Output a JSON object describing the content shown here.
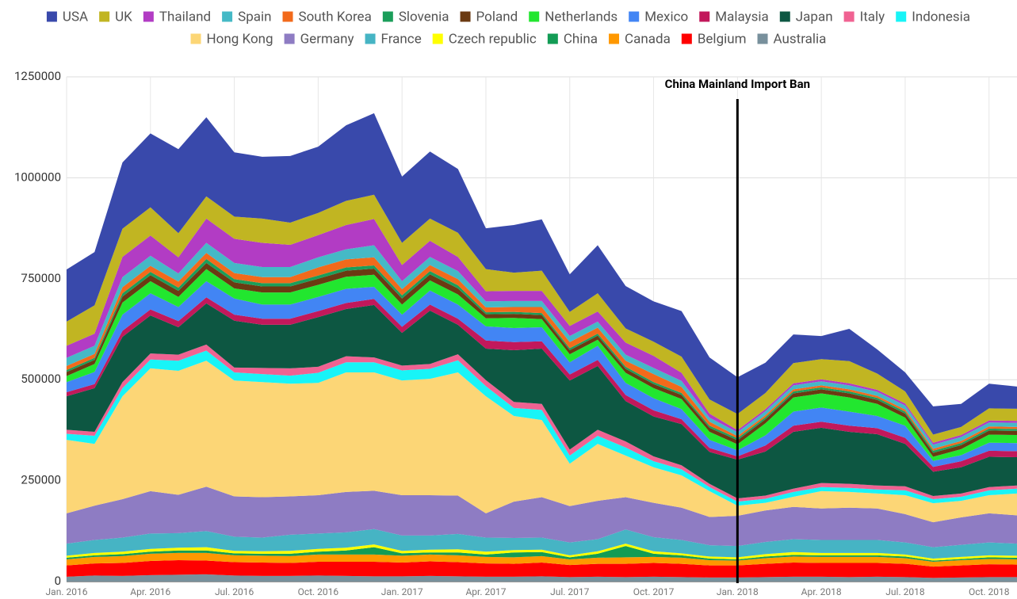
{
  "chart_data": {
    "type": "stacked_area",
    "categories": [
      "Jan. 2016",
      null,
      null,
      "Apr. 2016",
      null,
      null,
      "Jul. 2016",
      null,
      null,
      "Oct. 2016",
      null,
      null,
      "Jan. 2017",
      null,
      null,
      "Apr. 2017",
      null,
      null,
      "Jul. 2017",
      null,
      null,
      "Oct. 2017",
      null,
      null,
      "Jan. 2018",
      null,
      null,
      "Apr. 2018",
      null,
      null,
      "Jul. 2018",
      null,
      null,
      "Oct. 2018",
      null
    ],
    "ylim": [
      0,
      1250000
    ],
    "yticks": [
      0,
      250000,
      500000,
      750000,
      1000000,
      1250000
    ],
    "grid": true,
    "legend": "top",
    "annotations": [
      {
        "text": "China Mainland Import Ban",
        "x": "Jan. 2018"
      }
    ],
    "series": [
      {
        "name": "USA",
        "color": "#3949ab",
        "values": [
          129000,
          132000,
          164000,
          183000,
          208000,
          196000,
          159000,
          153000,
          165000,
          164000,
          187000,
          202000,
          164000,
          166000,
          158000,
          101000,
          118000,
          127000,
          93000,
          119000,
          105000,
          100000,
          113000,
          104000,
          91000,
          75000,
          71000,
          57000,
          80000,
          60000,
          47000,
          70000,
          57000,
          61000,
          55000
        ]
      },
      {
        "name": "UK",
        "color": "#c1b522",
        "values": [
          60000,
          70000,
          70000,
          70000,
          60000,
          55000,
          55000,
          60000,
          55000,
          55000,
          60000,
          60000,
          55000,
          55000,
          60000,
          55000,
          45000,
          50000,
          35000,
          45000,
          35000,
          35000,
          40000,
          35000,
          40000,
          40000,
          50000,
          50000,
          55000,
          40000,
          30000,
          20000,
          20000,
          30000,
          30000
        ]
      },
      {
        "name": "Thailand",
        "color": "#b23cc4",
        "values": [
          30000,
          30000,
          50000,
          50000,
          40000,
          60000,
          60000,
          60000,
          55000,
          55000,
          60000,
          65000,
          40000,
          40000,
          35000,
          25000,
          25000,
          25000,
          25000,
          25000,
          30000,
          30000,
          20000,
          10000,
          5000,
          5000,
          5000,
          5000,
          5000,
          5000,
          5000,
          5000,
          5000,
          5000,
          5000
        ]
      },
      {
        "name": "Spain",
        "color": "#45b9c6",
        "values": [
          20000,
          20000,
          25000,
          25000,
          20000,
          25000,
          25000,
          25000,
          25000,
          25000,
          25000,
          30000,
          20000,
          20000,
          20000,
          15000,
          15000,
          15000,
          15000,
          15000,
          15000,
          15000,
          15000,
          10000,
          10000,
          10000,
          10000,
          10000,
          10000,
          10000,
          10000,
          10000,
          10000,
          10000,
          10000
        ]
      },
      {
        "name": "South Korea",
        "color": "#f26a1b",
        "values": [
          10000,
          10000,
          15000,
          15000,
          15000,
          15000,
          15000,
          15000,
          15000,
          20000,
          20000,
          20000,
          15000,
          15000,
          15000,
          12000,
          12000,
          15000,
          15000,
          15000,
          15000,
          20000,
          15000,
          10000,
          5000,
          5000,
          5000,
          5000,
          5000,
          5000,
          5000,
          5000,
          5000,
          5000,
          5000
        ]
      },
      {
        "name": "Slovenia",
        "color": "#1b9e5a",
        "values": [
          5000,
          5000,
          8000,
          8000,
          8000,
          10000,
          8000,
          8000,
          8000,
          8000,
          8000,
          8000,
          8000,
          8000,
          8000,
          5000,
          5000,
          5000,
          5000,
          5000,
          5000,
          5000,
          5000,
          5000,
          5000,
          5000,
          5000,
          5000,
          5000,
          5000,
          5000,
          5000,
          5000,
          5000,
          5000
        ]
      },
      {
        "name": "Poland",
        "color": "#6b3a12",
        "values": [
          10000,
          10000,
          15000,
          15000,
          15000,
          15000,
          15000,
          15000,
          15000,
          15000,
          15000,
          15000,
          15000,
          15000,
          15000,
          10000,
          10000,
          10000,
          10000,
          10000,
          10000,
          10000,
          10000,
          10000,
          10000,
          10000,
          10000,
          10000,
          10000,
          10000,
          10000,
          10000,
          10000,
          10000,
          10000
        ]
      },
      {
        "name": "Netherlands",
        "color": "#22e62f",
        "values": [
          15000,
          20000,
          30000,
          30000,
          25000,
          30000,
          25000,
          30000,
          30000,
          30000,
          30000,
          30000,
          25000,
          25000,
          25000,
          20000,
          25000,
          20000,
          20000,
          15000,
          25000,
          25000,
          25000,
          20000,
          15000,
          30000,
          35000,
          35000,
          35000,
          30000,
          20000,
          10000,
          15000,
          20000,
          20000
        ]
      },
      {
        "name": "Mexico",
        "color": "#4285f4",
        "values": [
          25000,
          30000,
          40000,
          40000,
          35000,
          40000,
          40000,
          35000,
          35000,
          35000,
          35000,
          30000,
          30000,
          35000,
          35000,
          35000,
          35000,
          35000,
          30000,
          35000,
          30000,
          30000,
          25000,
          20000,
          15000,
          25000,
          35000,
          35000,
          35000,
          30000,
          30000,
          15000,
          15000,
          20000,
          20000
        ]
      },
      {
        "name": "Malaysia",
        "color": "#c2185b",
        "values": [
          10000,
          10000,
          15000,
          15000,
          15000,
          15000,
          15000,
          15000,
          15000,
          15000,
          15000,
          15000,
          15000,
          15000,
          15000,
          20000,
          20000,
          18000,
          15000,
          15000,
          15000,
          15000,
          12000,
          10000,
          8000,
          15000,
          15000,
          15000,
          15000,
          15000,
          15000,
          12000,
          15000,
          15000,
          15000
        ]
      },
      {
        "name": "Japan",
        "color": "#0d5742",
        "values": [
          83000,
          108000,
          112000,
          94000,
          68000,
          102000,
          116000,
          107000,
          108000,
          123000,
          117000,
          130000,
          81000,
          132000,
          73000,
          78000,
          128000,
          137000,
          171000,
          158000,
          100000,
          99000,
          102000,
          79000,
          96000,
          109000,
          141000,
          137000,
          129000,
          127000,
          105000,
          60000,
          65000,
          75000,
          70000
        ]
      },
      {
        "name": "Italy",
        "color": "#f06292",
        "values": [
          10000,
          10000,
          15000,
          15000,
          15000,
          15000,
          12000,
          15000,
          18000,
          15000,
          15000,
          12000,
          12000,
          12000,
          15000,
          15000,
          15000,
          15000,
          15000,
          15000,
          15000,
          12000,
          10000,
          8000,
          8000,
          8000,
          8000,
          10000,
          10000,
          10000,
          10000,
          8000,
          8000,
          8000,
          8000
        ]
      },
      {
        "name": "Indonesia",
        "color": "#18f4f7",
        "values": [
          15000,
          20000,
          20000,
          22000,
          25000,
          25000,
          20000,
          20000,
          20000,
          25000,
          25000,
          25000,
          25000,
          25000,
          30000,
          25000,
          20000,
          25000,
          20000,
          20000,
          20000,
          15000,
          15000,
          10000,
          10000,
          10000,
          12000,
          10000,
          10000,
          10000,
          12000,
          10000,
          10000,
          12000,
          12000
        ]
      },
      {
        "name": "Hong Kong",
        "color": "#fcd676",
        "values": [
          182000,
          153000,
          255000,
          304000,
          307000,
          312000,
          287000,
          285000,
          279000,
          278000,
          296000,
          293000,
          284000,
          288000,
          305000,
          290000,
          212000,
          191000,
          105000,
          141000,
          103000,
          88000,
          80000,
          64000,
          25000,
          19000,
          25000,
          43000,
          39000,
          37000,
          47000,
          47000,
          41000,
          45000,
          54000
        ]
      },
      {
        "name": "Germany",
        "color": "#8e7cc3",
        "values": [
          75000,
          85000,
          95000,
          105000,
          95000,
          110000,
          100000,
          100000,
          95000,
          95000,
          100000,
          95000,
          100000,
          100000,
          95000,
          60000,
          90000,
          100000,
          90000,
          95000,
          80000,
          85000,
          80000,
          70000,
          75000,
          78000,
          80000,
          78000,
          80000,
          78000,
          70000,
          62000,
          68000,
          72000,
          70000
        ]
      },
      {
        "name": "France",
        "color": "#46b4c4",
        "values": [
          30000,
          32000,
          35000,
          38000,
          36000,
          40000,
          35000,
          34000,
          40000,
          38000,
          38000,
          38000,
          38000,
          35000,
          38000,
          35000,
          30000,
          30000,
          32000,
          30000,
          35000,
          35000,
          33000,
          28000,
          28000,
          30000,
          32000,
          32000,
          32000,
          32000,
          30000,
          28000,
          30000,
          32000,
          30000
        ]
      },
      {
        "name": "Czech republic",
        "color": "#ffff00",
        "values": [
          5000,
          6000,
          6000,
          7000,
          7000,
          8000,
          6000,
          6000,
          7000,
          7000,
          7000,
          7000,
          6000,
          7000,
          8000,
          7000,
          6000,
          6000,
          5000,
          6000,
          6000,
          6000,
          5000,
          5000,
          5000,
          6000,
          7000,
          6000,
          6000,
          6000,
          5000,
          5000,
          5000,
          5000,
          5000
        ]
      },
      {
        "name": "China",
        "color": "#139c55",
        "values": [
          4000,
          4000,
          5000,
          5000,
          6000,
          6000,
          5000,
          5000,
          6000,
          7000,
          10000,
          18000,
          6000,
          5000,
          7000,
          6000,
          12000,
          10000,
          5000,
          10000,
          28000,
          8000,
          6000,
          4000,
          3000,
          4000,
          4000,
          4000,
          4000,
          4000,
          4000,
          3000,
          3000,
          4000,
          4000
        ]
      },
      {
        "name": "Canada",
        "color": "#ff9800",
        "values": [
          15000,
          16000,
          17000,
          18000,
          18000,
          19000,
          17000,
          17000,
          17000,
          18000,
          18000,
          18000,
          17000,
          17000,
          17000,
          16000,
          16000,
          16000,
          14000,
          15000,
          16000,
          15000,
          15000,
          13000,
          12000,
          14000,
          15000,
          15000,
          15000,
          15000,
          14000,
          12000,
          13000,
          13000,
          13000
        ]
      },
      {
        "name": "Belgium",
        "color": "#ff0000",
        "values": [
          28000,
          30000,
          32000,
          35000,
          36000,
          34000,
          33000,
          33000,
          32000,
          34000,
          35000,
          36000,
          34000,
          36000,
          35000,
          33000,
          32000,
          34000,
          30000,
          32000,
          33000,
          34000,
          33000,
          30000,
          30000,
          33000,
          35000,
          34000,
          35000,
          34000,
          33000,
          28000,
          30000,
          32000,
          31000
        ]
      },
      {
        "name": "Australia",
        "color": "#78909c",
        "values": [
          12000,
          15000,
          14000,
          16000,
          17000,
          18000,
          15000,
          14000,
          14000,
          15000,
          14000,
          13000,
          13000,
          14000,
          13000,
          12000,
          12000,
          13000,
          11000,
          12000,
          11000,
          12000,
          11000,
          10000,
          10000,
          11000,
          12000,
          12000,
          11000,
          12000,
          11000,
          9000,
          10000,
          11000,
          11000
        ]
      }
    ]
  }
}
